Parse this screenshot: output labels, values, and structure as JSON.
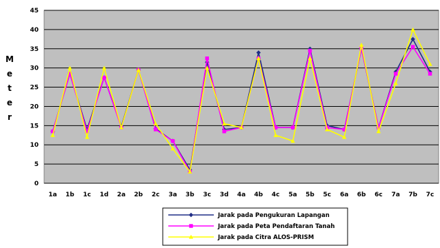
{
  "chart_data": {
    "type": "line",
    "title": "",
    "xlabel": "",
    "ylabel": "Meter",
    "ylim": [
      0,
      45
    ],
    "yticks": [
      0,
      5,
      10,
      15,
      20,
      25,
      30,
      35,
      40,
      45
    ],
    "grid": true,
    "legend_position": "bottom-center",
    "plot_background": "#bfbfbf",
    "categories": [
      "1a",
      "1b",
      "1c",
      "1d",
      "2a",
      "2b",
      "2c",
      "3a",
      "3b",
      "3c",
      "3d",
      "4a",
      "4b",
      "4c",
      "5a",
      "5b",
      "5c",
      "6a",
      "6b",
      "6c",
      "7a",
      "7b",
      "7c"
    ],
    "series": [
      {
        "name": "Jarak pada Pengukuran Lapangan",
        "color": "#1f2d86",
        "marker": "diamond",
        "values": [
          13.5,
          28.5,
          14,
          27.5,
          14.8,
          29.5,
          14.2,
          11,
          3.5,
          31.5,
          14,
          14.5,
          34,
          14.5,
          14.5,
          35,
          15,
          14,
          35,
          14.5,
          29,
          37.5,
          29
        ]
      },
      {
        "name": "Jarak pada Peta Pendaftaran Tanah",
        "color": "#ff00ff",
        "marker": "square",
        "values": [
          13.5,
          28.5,
          13.5,
          27.5,
          14.5,
          29.5,
          14,
          11,
          3,
          32.5,
          13.5,
          14.5,
          32.5,
          14.5,
          14.5,
          34.5,
          14.5,
          14,
          35,
          14.5,
          28.5,
          35.5,
          28.5
        ]
      },
      {
        "name": "Jarak pada Citra ALOS-PRISM",
        "color": "#ffff00",
        "marker": "triangle",
        "values": [
          12.5,
          30,
          12,
          30,
          14.5,
          29.5,
          15.5,
          9,
          3,
          30,
          15.5,
          14.5,
          32.5,
          12.5,
          11,
          32.5,
          14,
          12,
          36,
          13.5,
          26,
          40,
          31
        ]
      }
    ]
  }
}
